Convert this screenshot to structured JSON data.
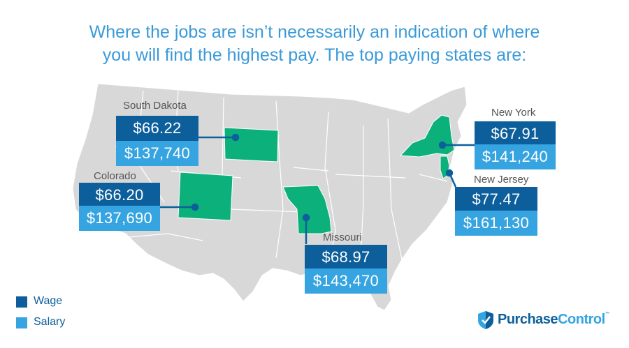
{
  "headline": {
    "line1": "Where the jobs are isn’t necessarily an indication of where",
    "line2": "you will find the highest pay. The top paying states are:"
  },
  "states": {
    "south_dakota": {
      "name": "South Dakota",
      "wage": "$66.22",
      "salary": "$137,740"
    },
    "colorado": {
      "name": "Colorado",
      "wage": "$66.20",
      "salary": "$137,690"
    },
    "missouri": {
      "name": "Missouri",
      "wage": "$68.97",
      "salary": "$143,470"
    },
    "new_york": {
      "name": "New York",
      "wage": "$67.91",
      "salary": "$141,240"
    },
    "new_jersey": {
      "name": "New Jersey",
      "wage": "$77.47",
      "salary": "$161,130"
    }
  },
  "legend": {
    "wage_label": "Wage",
    "salary_label": "Salary"
  },
  "brand": {
    "name_part1": "Purchase",
    "name_part2": "Control",
    "trademark": "™"
  },
  "colors": {
    "headline": "#3a9ad9",
    "wage": "#0d5f9c",
    "salary": "#35a4e0",
    "highlight_state": "#0bb07b",
    "map_fill": "#d8d8d8",
    "map_border": "#ffffff",
    "leader_line": "#0d5f9c"
  }
}
